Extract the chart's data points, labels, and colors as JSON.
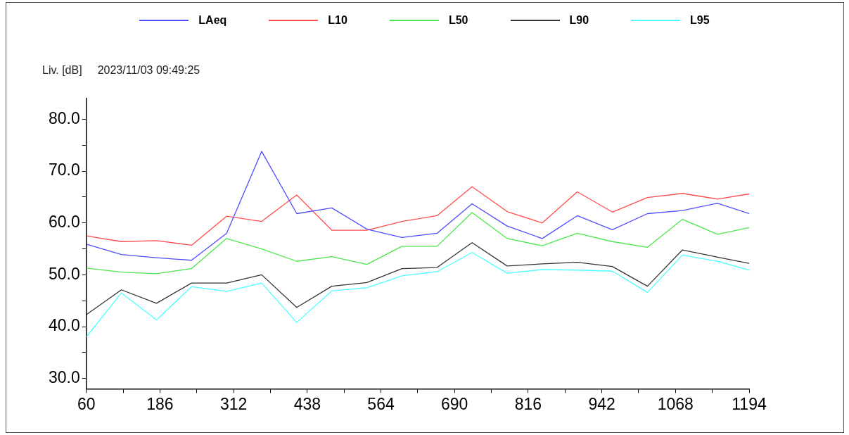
{
  "chart_data": {
    "type": "line",
    "subtitle": "2023/11/03 09:49:25",
    "ylabel": "Liv. [dB]",
    "x": [
      60,
      120,
      180,
      240,
      300,
      360,
      420,
      480,
      540,
      600,
      660,
      720,
      780,
      840,
      900,
      960,
      1020,
      1080,
      1140,
      1194
    ],
    "xlim": [
      60,
      1194
    ],
    "xticks": [
      60,
      {
        "value": 123,
        "label": null
      },
      186,
      {
        "value": 249,
        "label": null
      },
      312,
      {
        "value": 375,
        "label": null
      },
      438,
      {
        "value": 501,
        "label": null
      },
      564,
      {
        "value": 627,
        "label": null
      },
      690,
      {
        "value": 753,
        "label": null
      },
      816,
      {
        "value": 879,
        "label": null
      },
      942,
      {
        "value": 1005,
        "label": null
      },
      1068,
      {
        "value": 1131,
        "label": null
      },
      1194
    ],
    "ylim": [
      28,
      84
    ],
    "yticks": [
      {
        "value": 30,
        "label": "30.0"
      },
      {
        "value": 35,
        "label": null
      },
      {
        "value": 40,
        "label": "40.0"
      },
      {
        "value": 45,
        "label": null
      },
      {
        "value": 50,
        "label": "50.0"
      },
      {
        "value": 55,
        "label": null
      },
      {
        "value": 60,
        "label": "60.0"
      },
      {
        "value": 65,
        "label": null
      },
      {
        "value": 70,
        "label": "70.0"
      },
      {
        "value": 75,
        "label": null
      },
      {
        "value": 80,
        "label": "80.0"
      }
    ],
    "grid": false,
    "legend": "top",
    "marker": "none",
    "line_style": "solid",
    "series": [
      {
        "name": "LAeq",
        "color": "#4d4dff",
        "values": [
          55.9,
          53.9,
          53.3,
          52.8,
          58.0,
          73.8,
          61.8,
          62.9,
          58.8,
          57.2,
          58.0,
          63.7,
          59.4,
          57.0,
          61.4,
          58.7,
          61.8,
          62.4,
          63.8,
          61.8
        ]
      },
      {
        "name": "L10",
        "color": "#ff4d4d",
        "values": [
          57.5,
          56.4,
          56.6,
          55.7,
          61.3,
          60.3,
          65.4,
          58.6,
          58.6,
          60.3,
          61.4,
          67.0,
          62.2,
          60.0,
          66.0,
          62.1,
          64.9,
          65.7,
          64.6,
          65.6
        ]
      },
      {
        "name": "L50",
        "color": "#4de64d",
        "values": [
          51.3,
          50.5,
          50.2,
          51.2,
          57.0,
          55.0,
          52.6,
          53.5,
          52.0,
          55.5,
          55.5,
          62.0,
          57.0,
          55.6,
          58.0,
          56.4,
          55.3,
          60.7,
          57.8,
          59.1
        ]
      },
      {
        "name": "L90",
        "color": "#333333",
        "values": [
          42.3,
          47.1,
          44.5,
          48.4,
          48.4,
          50.0,
          43.7,
          47.8,
          48.5,
          51.2,
          51.4,
          56.2,
          51.7,
          52.1,
          52.4,
          51.6,
          47.8,
          54.8,
          53.4,
          52.2
        ]
      },
      {
        "name": "L95",
        "color": "#4dffff",
        "values": [
          38.0,
          46.5,
          41.3,
          47.7,
          46.8,
          48.4,
          40.8,
          46.9,
          47.5,
          49.8,
          50.6,
          54.3,
          50.3,
          51.0,
          50.9,
          50.7,
          46.6,
          53.8,
          52.6,
          50.9
        ]
      }
    ]
  }
}
